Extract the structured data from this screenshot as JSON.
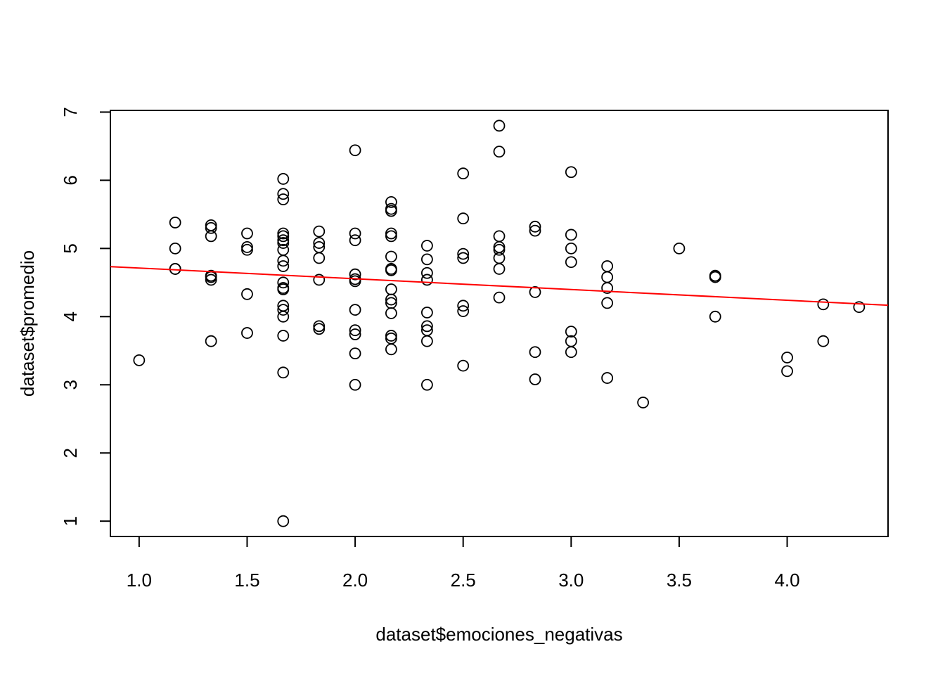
{
  "chart_data": {
    "type": "scatter",
    "title": "",
    "xlabel": "dataset$emociones_negativas",
    "ylabel": "dataset$promedio",
    "xlim": [
      0.867,
      4.467
    ],
    "ylim": [
      0.775,
      7.025
    ],
    "xticks": [
      "1.0",
      "1.5",
      "2.0",
      "2.5",
      "3.0",
      "3.5",
      "4.0"
    ],
    "yticks": [
      "1",
      "2",
      "3",
      "4",
      "5",
      "6",
      "7"
    ],
    "grid": false,
    "legend": "none",
    "point_color": "#000000",
    "trend_color": "#ff0000",
    "trend_line": {
      "intercept": 4.87,
      "slope": -0.1575
    },
    "points": [
      [
        1.0,
        3.36
      ],
      [
        1.167,
        5.38
      ],
      [
        1.167,
        5.0
      ],
      [
        1.167,
        4.7
      ],
      [
        1.167,
        4.7
      ],
      [
        1.333,
        5.34
      ],
      [
        1.333,
        5.3
      ],
      [
        1.333,
        5.18
      ],
      [
        1.333,
        4.6
      ],
      [
        1.333,
        4.58
      ],
      [
        1.333,
        4.54
      ],
      [
        1.333,
        3.64
      ],
      [
        1.5,
        5.22
      ],
      [
        1.5,
        5.02
      ],
      [
        1.5,
        4.98
      ],
      [
        1.5,
        4.33
      ],
      [
        1.5,
        3.76
      ],
      [
        1.667,
        6.02
      ],
      [
        1.667,
        5.8
      ],
      [
        1.667,
        5.72
      ],
      [
        1.667,
        5.22
      ],
      [
        1.667,
        5.18
      ],
      [
        1.667,
        5.12
      ],
      [
        1.667,
        5.08
      ],
      [
        1.667,
        4.98
      ],
      [
        1.667,
        4.82
      ],
      [
        1.667,
        4.74
      ],
      [
        1.667,
        4.5
      ],
      [
        1.667,
        4.42
      ],
      [
        1.667,
        4.4
      ],
      [
        1.667,
        4.16
      ],
      [
        1.667,
        4.1
      ],
      [
        1.667,
        4.0
      ],
      [
        1.667,
        3.72
      ],
      [
        1.667,
        3.18
      ],
      [
        1.667,
        1.0
      ],
      [
        1.833,
        5.25
      ],
      [
        1.833,
        5.08
      ],
      [
        1.833,
        5.02
      ],
      [
        1.833,
        4.86
      ],
      [
        1.833,
        4.54
      ],
      [
        1.833,
        3.86
      ],
      [
        1.833,
        3.82
      ],
      [
        2.0,
        6.44
      ],
      [
        2.0,
        5.22
      ],
      [
        2.0,
        5.12
      ],
      [
        2.0,
        4.62
      ],
      [
        2.0,
        4.55
      ],
      [
        2.0,
        4.52
      ],
      [
        2.0,
        4.1
      ],
      [
        2.0,
        3.8
      ],
      [
        2.0,
        3.74
      ],
      [
        2.0,
        3.46
      ],
      [
        2.0,
        3.0
      ],
      [
        2.167,
        5.68
      ],
      [
        2.167,
        5.58
      ],
      [
        2.167,
        5.55
      ],
      [
        2.167,
        5.22
      ],
      [
        2.167,
        5.18
      ],
      [
        2.167,
        4.88
      ],
      [
        2.167,
        4.7
      ],
      [
        2.167,
        4.68
      ],
      [
        2.167,
        4.4
      ],
      [
        2.167,
        4.25
      ],
      [
        2.167,
        4.2
      ],
      [
        2.167,
        4.05
      ],
      [
        2.167,
        3.72
      ],
      [
        2.167,
        3.68
      ],
      [
        2.167,
        3.52
      ],
      [
        2.333,
        5.04
      ],
      [
        2.333,
        4.84
      ],
      [
        2.333,
        4.64
      ],
      [
        2.333,
        4.54
      ],
      [
        2.333,
        4.06
      ],
      [
        2.333,
        3.86
      ],
      [
        2.333,
        3.8
      ],
      [
        2.333,
        3.64
      ],
      [
        2.333,
        3.0
      ],
      [
        2.5,
        6.1
      ],
      [
        2.5,
        5.44
      ],
      [
        2.5,
        4.92
      ],
      [
        2.5,
        4.86
      ],
      [
        2.5,
        4.16
      ],
      [
        2.5,
        4.08
      ],
      [
        2.5,
        3.28
      ],
      [
        2.667,
        6.8
      ],
      [
        2.667,
        6.42
      ],
      [
        2.667,
        5.18
      ],
      [
        2.667,
        5.02
      ],
      [
        2.667,
        4.98
      ],
      [
        2.667,
        4.86
      ],
      [
        2.667,
        4.7
      ],
      [
        2.667,
        4.28
      ],
      [
        2.833,
        5.32
      ],
      [
        2.833,
        5.26
      ],
      [
        2.833,
        4.36
      ],
      [
        2.833,
        3.48
      ],
      [
        2.833,
        3.08
      ],
      [
        3.0,
        6.12
      ],
      [
        3.0,
        5.2
      ],
      [
        3.0,
        5.0
      ],
      [
        3.0,
        4.8
      ],
      [
        3.0,
        3.78
      ],
      [
        3.0,
        3.64
      ],
      [
        3.0,
        3.48
      ],
      [
        3.167,
        4.74
      ],
      [
        3.167,
        4.58
      ],
      [
        3.167,
        4.42
      ],
      [
        3.167,
        4.2
      ],
      [
        3.167,
        3.1
      ],
      [
        3.333,
        2.74
      ],
      [
        3.5,
        5.0
      ],
      [
        3.667,
        4.6
      ],
      [
        3.667,
        4.58
      ],
      [
        3.667,
        4.0
      ],
      [
        4.0,
        3.4
      ],
      [
        4.0,
        3.2
      ],
      [
        4.167,
        4.18
      ],
      [
        4.167,
        3.64
      ],
      [
        4.333,
        4.14
      ]
    ]
  }
}
